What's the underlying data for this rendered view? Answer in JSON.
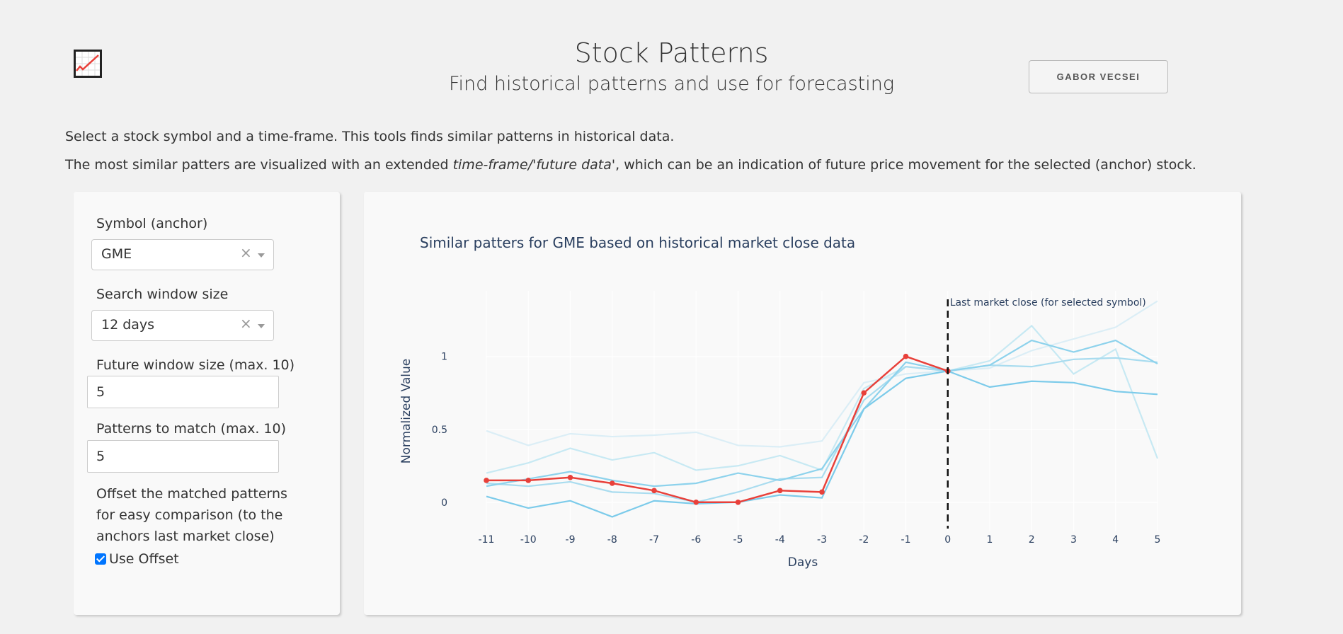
{
  "header": {
    "title": "Stock Patterns",
    "subtitle": "Find historical patterns and use for forecasting",
    "author_button": "GABOR VECSEI",
    "logo_icon": "chart-line-icon"
  },
  "intro": {
    "line1": "Select a stock symbol and a time-frame. This tools finds similar patterns in historical data.",
    "line2_prefix": "The most similar patters are visualized with an extended ",
    "line2_emph": "time-frame/'future data'",
    "line2_suffix": ", which can be an indication of future price movement for the selected (anchor) stock."
  },
  "controls": {
    "symbol_label": "Symbol (anchor)",
    "symbol_value": "GME",
    "window_label": "Search window size",
    "window_value": "12 days",
    "future_label": "Future window size (max. 10)",
    "future_value": "5",
    "patterns_label": "Patterns to match (max. 10)",
    "patterns_value": "5",
    "offset_text": "Offset the matched patterns for easy comparison (to the anchors last market close)",
    "offset_checkbox_label": "Use Offset",
    "offset_checked": true,
    "clear_icon": "×"
  },
  "chart_data": {
    "type": "line",
    "title": "Similar patters for GME based on historical market close data",
    "xlabel": "Days",
    "ylabel": "Normalized Value",
    "x": [
      -11,
      -10,
      -9,
      -8,
      -7,
      -6,
      -5,
      -4,
      -3,
      -2,
      -1,
      0,
      1,
      2,
      3,
      4,
      5
    ],
    "xlim": [
      -11,
      5
    ],
    "ylim": [
      -0.2,
      1.45
    ],
    "yticks": [
      0,
      0.5,
      1
    ],
    "grid": true,
    "annotation": "Last market close (for selected symbol)",
    "annotation_x": 0,
    "anchor": {
      "color": "#e8403a",
      "values": [
        0.15,
        0.15,
        0.17,
        0.13,
        0.08,
        0.0,
        0.0,
        0.08,
        0.07,
        0.75,
        1.0,
        0.9
      ]
    },
    "series": [
      {
        "color": "#dbeef6",
        "values": [
          0.49,
          0.39,
          0.47,
          0.45,
          0.46,
          0.48,
          0.39,
          0.38,
          0.42,
          0.82,
          0.88,
          0.9,
          0.92,
          1.04,
          1.12,
          1.2,
          1.38
        ]
      },
      {
        "color": "#c7e9f3",
        "values": [
          0.2,
          0.27,
          0.37,
          0.29,
          0.34,
          0.22,
          0.25,
          0.32,
          0.22,
          0.78,
          0.93,
          0.9,
          0.97,
          1.21,
          0.88,
          1.05,
          0.3
        ]
      },
      {
        "color": "#a9dcef",
        "values": [
          0.13,
          0.11,
          0.14,
          0.07,
          0.06,
          0.0,
          0.07,
          0.16,
          0.17,
          0.7,
          0.93,
          0.9,
          0.94,
          0.93,
          0.98,
          0.99,
          0.96
        ]
      },
      {
        "color": "#8dd2ec",
        "values": [
          0.11,
          0.16,
          0.21,
          0.15,
          0.11,
          0.13,
          0.2,
          0.15,
          0.23,
          0.64,
          0.96,
          0.9,
          0.94,
          1.11,
          1.03,
          1.11,
          0.95
        ]
      },
      {
        "color": "#7ccbea",
        "values": [
          0.04,
          -0.04,
          0.01,
          -0.1,
          0.01,
          -0.01,
          0.0,
          0.05,
          0.03,
          0.64,
          0.85,
          0.9,
          0.79,
          0.83,
          0.82,
          0.76,
          0.74
        ]
      }
    ]
  }
}
